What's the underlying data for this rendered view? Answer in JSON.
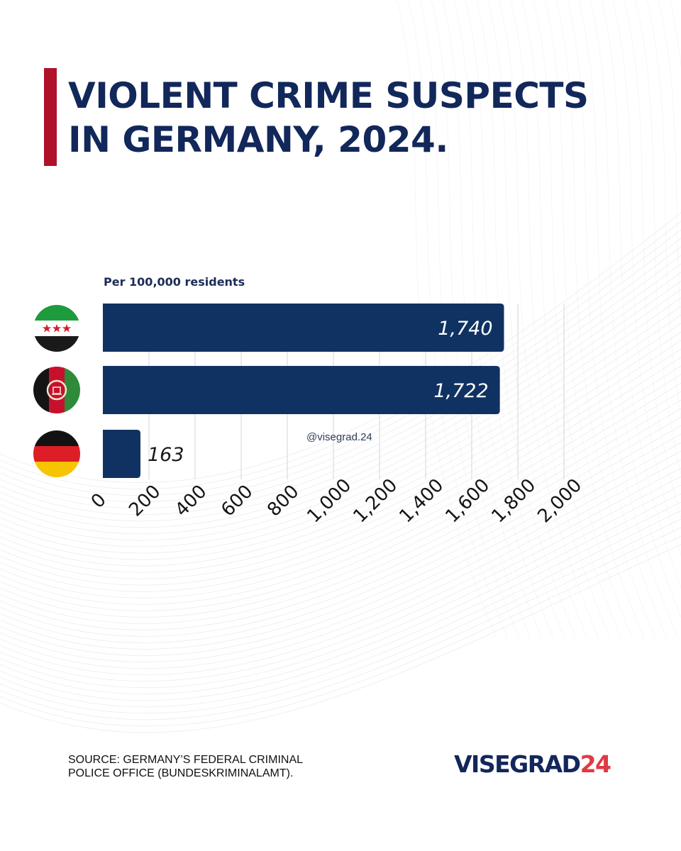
{
  "title": "VIOLENT CRIME SUSPECTS\nIN GERMANY, 2024.",
  "subtitle": "Per 100,000 residents",
  "watermark": "@visegrad.24",
  "source": "SOURCE: GERMANY’S FEDERAL CRIMINAL\nPOLICE OFFICE (BUNDESKRIMINALAMT).",
  "brand": {
    "name": "VISEGRAD",
    "number": "24",
    "accent_color": "#e03a42",
    "primary_color": "#12275a"
  },
  "colors": {
    "bar": "#0f3262",
    "title_accent": "#b0122a"
  },
  "flags": [
    "syria-flag-icon",
    "afghanistan-flag-icon",
    "germany-flag-icon"
  ],
  "chart_data": {
    "type": "bar",
    "orientation": "horizontal",
    "title": "VIOLENT CRIME SUSPECTS IN GERMANY, 2024.",
    "subtitle": "Per 100,000 residents",
    "values": [
      1740,
      1722,
      163
    ],
    "value_labels": [
      "1,740",
      "1,722",
      "163"
    ],
    "xlim": [
      0,
      2000
    ],
    "xticks": [
      0,
      200,
      400,
      600,
      800,
      1000,
      1200,
      1400,
      1600,
      1800,
      2000
    ],
    "xtick_labels": [
      "0",
      "200",
      "400",
      "600",
      "800",
      "1,000",
      "1,200",
      "1,400",
      "1,600",
      "1,800",
      "2,000"
    ],
    "grid": true,
    "legend": "none"
  }
}
